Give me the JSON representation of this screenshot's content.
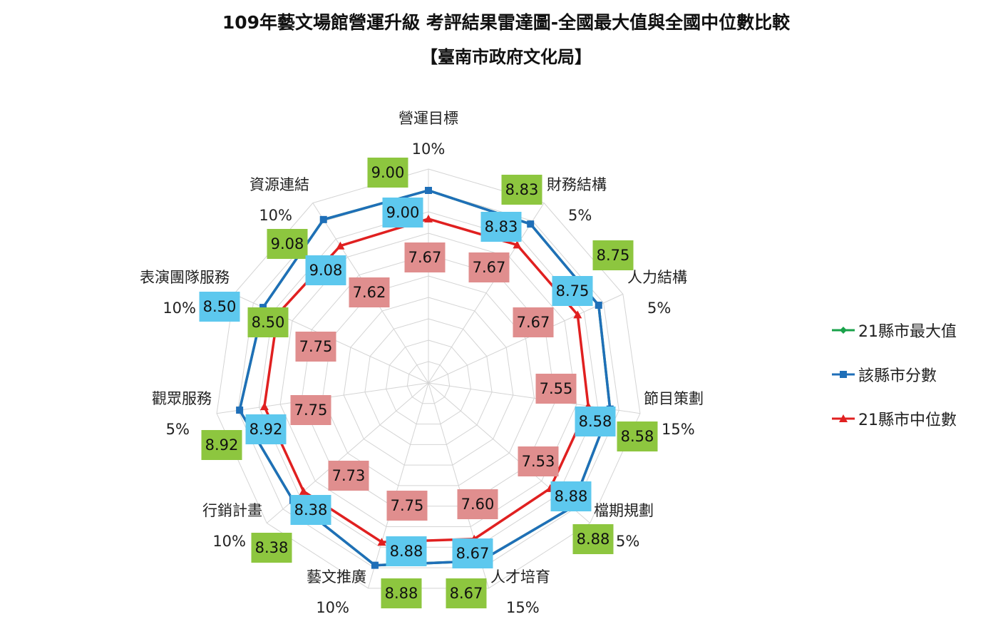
{
  "chart_data": {
    "type": "radar",
    "title": "109年藝文場館營運升級 考評結果雷達圖-全國最大值與全國中位數比較",
    "subtitle": "【臺南市政府文化局】",
    "axes": [
      {
        "name": "營運目標",
        "weight": "10%"
      },
      {
        "name": "財務結構",
        "weight": "5%"
      },
      {
        "name": "人力結構",
        "weight": "5%"
      },
      {
        "name": "節目策劃",
        "weight": "15%"
      },
      {
        "name": "檔期規劃",
        "weight": "5%"
      },
      {
        "name": "人才培育",
        "weight": "15%"
      },
      {
        "name": "藝文推廣",
        "weight": "10%"
      },
      {
        "name": "行銷計畫",
        "weight": "10%"
      },
      {
        "name": "觀眾服務",
        "weight": "5%"
      },
      {
        "name": "表演團隊服務",
        "weight": "10%"
      },
      {
        "name": "資源連結",
        "weight": "10%"
      }
    ],
    "rlim": [
      0,
      10
    ],
    "grid": true,
    "legend_position": "right",
    "series": [
      {
        "name": "21縣市最大值",
        "color": "#19a24a",
        "values": [
          9.0,
          8.83,
          8.75,
          8.58,
          8.88,
          8.67,
          8.88,
          8.38,
          8.92,
          8.5,
          9.08
        ],
        "labels": [
          "9.00",
          "8.83",
          "8.75",
          "8.58",
          "8.88",
          "8.67",
          "8.88",
          "8.38",
          "8.92",
          "8.50",
          "9.08"
        ]
      },
      {
        "name": "該縣市分數",
        "color": "#1f6fb8",
        "values": [
          9.0,
          8.83,
          8.75,
          8.58,
          8.88,
          8.67,
          8.88,
          8.38,
          8.92,
          8.5,
          9.08
        ],
        "labels": [
          "9.00",
          "8.83",
          "8.75",
          "8.58",
          "8.88",
          "8.67",
          "8.88",
          "8.38",
          "8.92",
          "8.50",
          "9.08"
        ]
      },
      {
        "name": "21縣市中位數",
        "color": "#e02020",
        "values": [
          7.67,
          7.67,
          7.67,
          7.55,
          7.53,
          7.6,
          7.75,
          7.73,
          7.75,
          7.75,
          7.62
        ],
        "labels": [
          "7.67",
          "7.67",
          "7.67",
          "7.55",
          "7.53",
          "7.60",
          "7.75",
          "7.73",
          "7.75",
          "7.75",
          "7.62"
        ]
      }
    ]
  }
}
